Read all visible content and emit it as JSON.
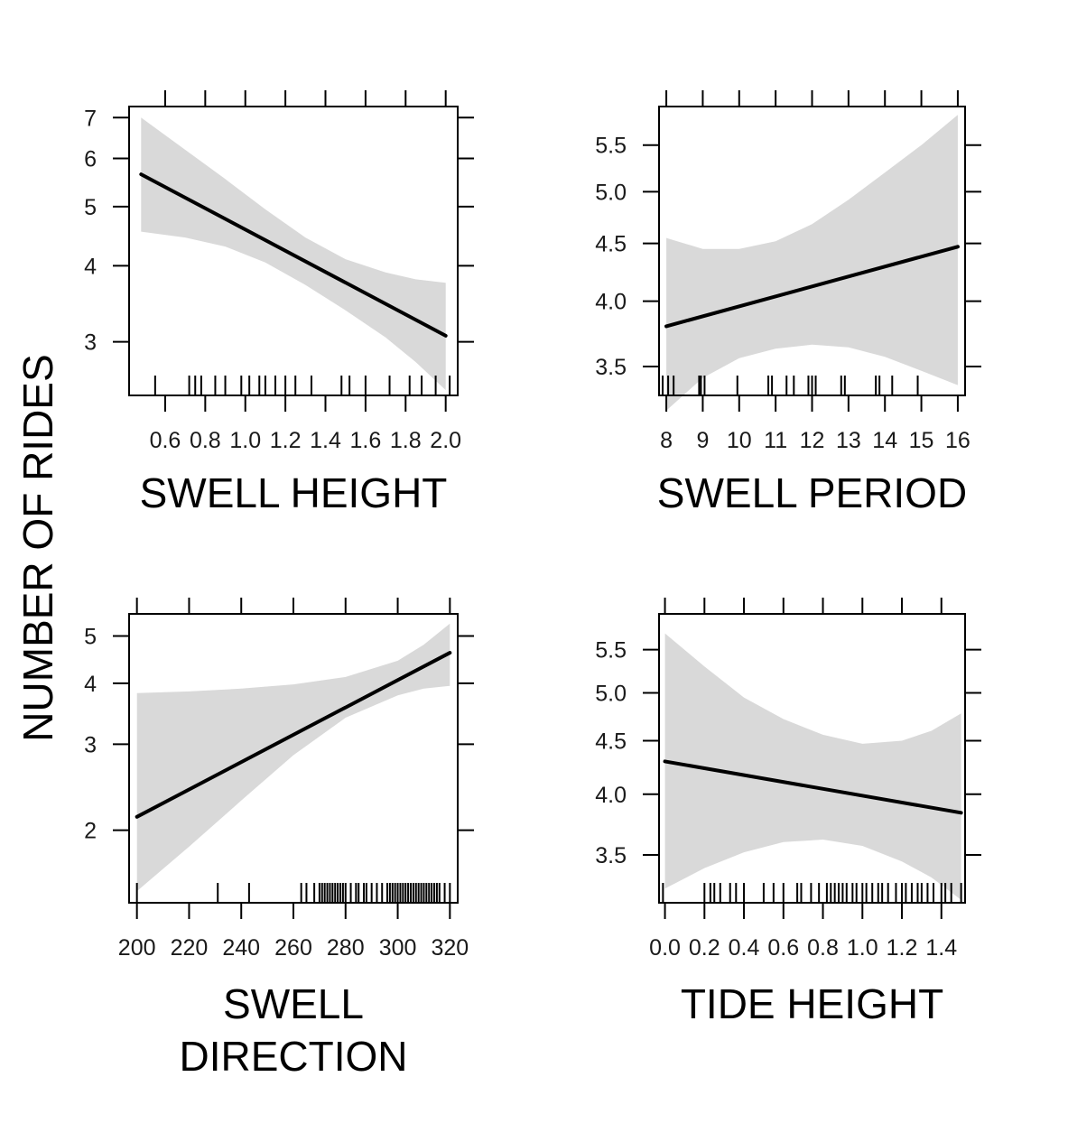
{
  "ylabel": "NUMBER OF RIDES",
  "colors": {
    "band": "#d9d9d9",
    "line": "#000000",
    "frame": "#000000"
  },
  "chart_data": [
    {
      "type": "line",
      "xlabel_lines": [
        "SWELL HEIGHT"
      ],
      "xlim": [
        0.42,
        2.06
      ],
      "ylim": [
        2.45,
        7.3
      ],
      "y_scale": "log",
      "x_ticks": [
        0.6,
        0.8,
        1.0,
        1.2,
        1.4,
        1.6,
        1.8,
        2.0
      ],
      "x_tick_labels": [
        "0.6",
        "0.8",
        "1.0",
        "1.2",
        "1.4",
        "1.6",
        "1.8",
        "2.0"
      ],
      "y_ticks": [
        3,
        4,
        5,
        6,
        7
      ],
      "y_tick_labels": [
        "3",
        "4",
        "5",
        "6",
        "7"
      ],
      "fit": {
        "x": [
          0.48,
          2.0
        ],
        "y": [
          5.65,
          3.07
        ]
      },
      "band": {
        "x": [
          0.48,
          0.7,
          0.9,
          1.1,
          1.3,
          1.5,
          1.7,
          1.85,
          2.0
        ],
        "upper": [
          7.0,
          6.2,
          5.55,
          4.95,
          4.45,
          4.1,
          3.9,
          3.8,
          3.75
        ],
        "lower": [
          4.55,
          4.45,
          4.3,
          4.05,
          3.72,
          3.38,
          3.05,
          2.78,
          2.5
        ]
      },
      "rug": [
        0.55,
        0.72,
        0.75,
        0.78,
        0.85,
        0.9,
        0.98,
        1.02,
        1.07,
        1.1,
        1.15,
        1.2,
        1.25,
        1.33,
        1.48,
        1.52,
        1.6,
        1.72,
        1.82,
        1.88,
        1.95,
        2.02
      ]
    },
    {
      "type": "line",
      "xlabel_lines": [
        "SWELL PERIOD"
      ],
      "xlim": [
        7.8,
        16.2
      ],
      "ylim": [
        3.3,
        5.95
      ],
      "y_scale": "log",
      "x_ticks": [
        8,
        9,
        10,
        11,
        12,
        13,
        14,
        15,
        16
      ],
      "x_tick_labels": [
        "8",
        "9",
        "10",
        "11",
        "12",
        "13",
        "14",
        "15",
        "16"
      ],
      "y_ticks": [
        3.5,
        4.0,
        4.5,
        5.0,
        5.5
      ],
      "y_tick_labels": [
        "3.5",
        "4.0",
        "4.5",
        "5.0",
        "5.5"
      ],
      "fit": {
        "x": [
          8,
          16
        ],
        "y": [
          3.8,
          4.47
        ]
      },
      "band": {
        "x": [
          8,
          9,
          10,
          11,
          12,
          13,
          14,
          15,
          16
        ],
        "upper": [
          4.55,
          4.45,
          4.45,
          4.52,
          4.68,
          4.92,
          5.2,
          5.5,
          5.85
        ],
        "lower": [
          3.2,
          3.42,
          3.56,
          3.63,
          3.66,
          3.64,
          3.57,
          3.47,
          3.37
        ]
      },
      "rug": [
        7.9,
        8.05,
        8.2,
        8.9,
        8.95,
        9.05,
        9.95,
        10.8,
        10.9,
        11.3,
        11.5,
        11.9,
        12.0,
        12.1,
        12.8,
        12.9,
        13.75,
        13.85,
        14.2,
        14.9
      ]
    },
    {
      "type": "line",
      "xlabel_lines": [
        "SWELL",
        "DIRECTION"
      ],
      "xlim": [
        197,
        323
      ],
      "ylim": [
        1.42,
        5.55
      ],
      "y_scale": "log",
      "x_ticks": [
        200,
        220,
        240,
        260,
        280,
        300,
        320
      ],
      "x_tick_labels": [
        "200",
        "220",
        "240",
        "260",
        "280",
        "300",
        "320"
      ],
      "y_ticks": [
        2,
        3,
        4,
        5
      ],
      "y_tick_labels": [
        "2",
        "3",
        "4",
        "5"
      ],
      "fit": {
        "x": [
          200,
          320
        ],
        "y": [
          2.13,
          4.62
        ]
      },
      "band": {
        "x": [
          200,
          220,
          240,
          260,
          280,
          300,
          310,
          320
        ],
        "upper": [
          3.82,
          3.85,
          3.9,
          3.98,
          4.12,
          4.45,
          4.8,
          5.3
        ],
        "lower": [
          1.5,
          1.85,
          2.3,
          2.85,
          3.4,
          3.78,
          3.9,
          3.95
        ]
      },
      "rug": [
        200,
        231,
        243,
        263,
        265,
        268,
        270,
        271,
        272,
        273,
        274,
        275,
        276,
        277,
        278,
        279,
        280,
        282,
        284,
        285,
        287,
        288,
        290,
        292,
        294,
        296,
        297,
        298,
        299,
        300,
        301,
        302,
        303,
        304,
        305,
        306,
        307,
        308,
        309,
        310,
        311,
        312,
        313,
        314,
        315,
        316,
        318,
        320
      ]
    },
    {
      "type": "line",
      "xlabel_lines": [
        "TIDE HEIGHT"
      ],
      "xlim": [
        -0.03,
        1.52
      ],
      "ylim": [
        3.15,
        5.95
      ],
      "y_scale": "log",
      "x_ticks": [
        0.0,
        0.2,
        0.4,
        0.6,
        0.8,
        1.0,
        1.2,
        1.4
      ],
      "x_tick_labels": [
        "0.0",
        "0.2",
        "0.4",
        "0.6",
        "0.8",
        "1.0",
        "1.2",
        "1.4"
      ],
      "y_ticks": [
        3.5,
        4.0,
        4.5,
        5.0,
        5.5
      ],
      "y_tick_labels": [
        "3.5",
        "4.0",
        "4.5",
        "5.0",
        "5.5"
      ],
      "fit": {
        "x": [
          0.0,
          1.5
        ],
        "y": [
          4.3,
          3.84
        ]
      },
      "band": {
        "x": [
          0.0,
          0.2,
          0.4,
          0.6,
          0.8,
          1.0,
          1.2,
          1.35,
          1.5
        ],
        "upper": [
          5.7,
          5.3,
          4.95,
          4.72,
          4.56,
          4.47,
          4.5,
          4.6,
          4.78
        ],
        "lower": [
          3.25,
          3.4,
          3.52,
          3.6,
          3.62,
          3.57,
          3.45,
          3.33,
          3.17
        ]
      },
      "rug": [
        -0.01,
        0.2,
        0.23,
        0.25,
        0.28,
        0.33,
        0.36,
        0.4,
        0.5,
        0.55,
        0.6,
        0.67,
        0.69,
        0.74,
        0.78,
        0.82,
        0.84,
        0.86,
        0.88,
        0.9,
        0.92,
        0.95,
        0.97,
        1.0,
        1.02,
        1.05,
        1.08,
        1.1,
        1.13,
        1.17,
        1.2,
        1.22,
        1.25,
        1.28,
        1.3,
        1.33,
        1.36,
        1.4,
        1.42,
        1.45,
        1.5
      ]
    }
  ]
}
